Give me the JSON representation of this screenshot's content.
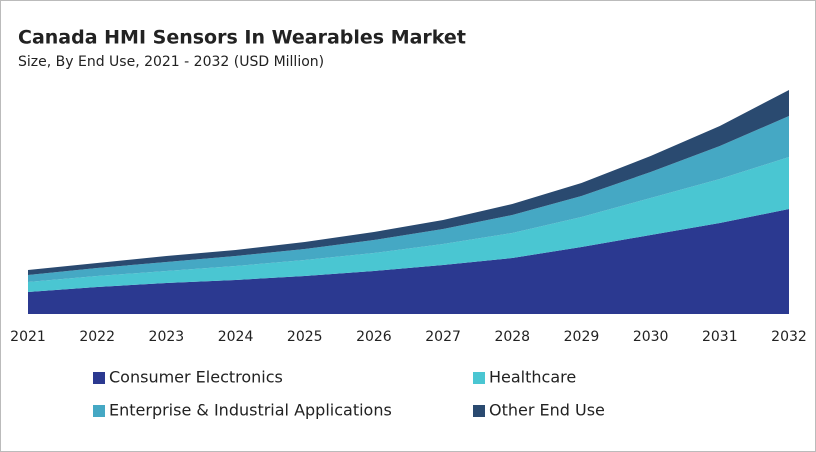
{
  "chart_data": {
    "type": "stacked-area",
    "title": "Canada HMI Sensors In Wearables Market",
    "subtitle": "Size, By End Use, 2021 - 2032 (USD Million)",
    "categories": [
      "2021",
      "2022",
      "2023",
      "2024",
      "2025",
      "2026",
      "2027",
      "2028",
      "2029",
      "2030",
      "2031",
      "2032"
    ],
    "series": [
      {
        "name": "Consumer Electronics",
        "color": "#2b3990",
        "values": [
          22,
          27,
          31,
          34,
          38,
          43,
          49,
          56,
          67,
          79,
          91,
          105
        ]
      },
      {
        "name": "Healthcare",
        "color": "#4ac6d2",
        "values": [
          10,
          11,
          12,
          14,
          16,
          18,
          21,
          25,
          30,
          37,
          44,
          52
        ]
      },
      {
        "name": "Enterprise & Industrial Applications",
        "color": "#45a8c4",
        "values": [
          7,
          8,
          9,
          10,
          11,
          13,
          15,
          18,
          21,
          26,
          33,
          41
        ]
      },
      {
        "name": "Other End Use",
        "color": "#2a4a70",
        "values": [
          5,
          5,
          6,
          6,
          7,
          8,
          9,
          11,
          13,
          16,
          20,
          26
        ]
      }
    ]
  }
}
